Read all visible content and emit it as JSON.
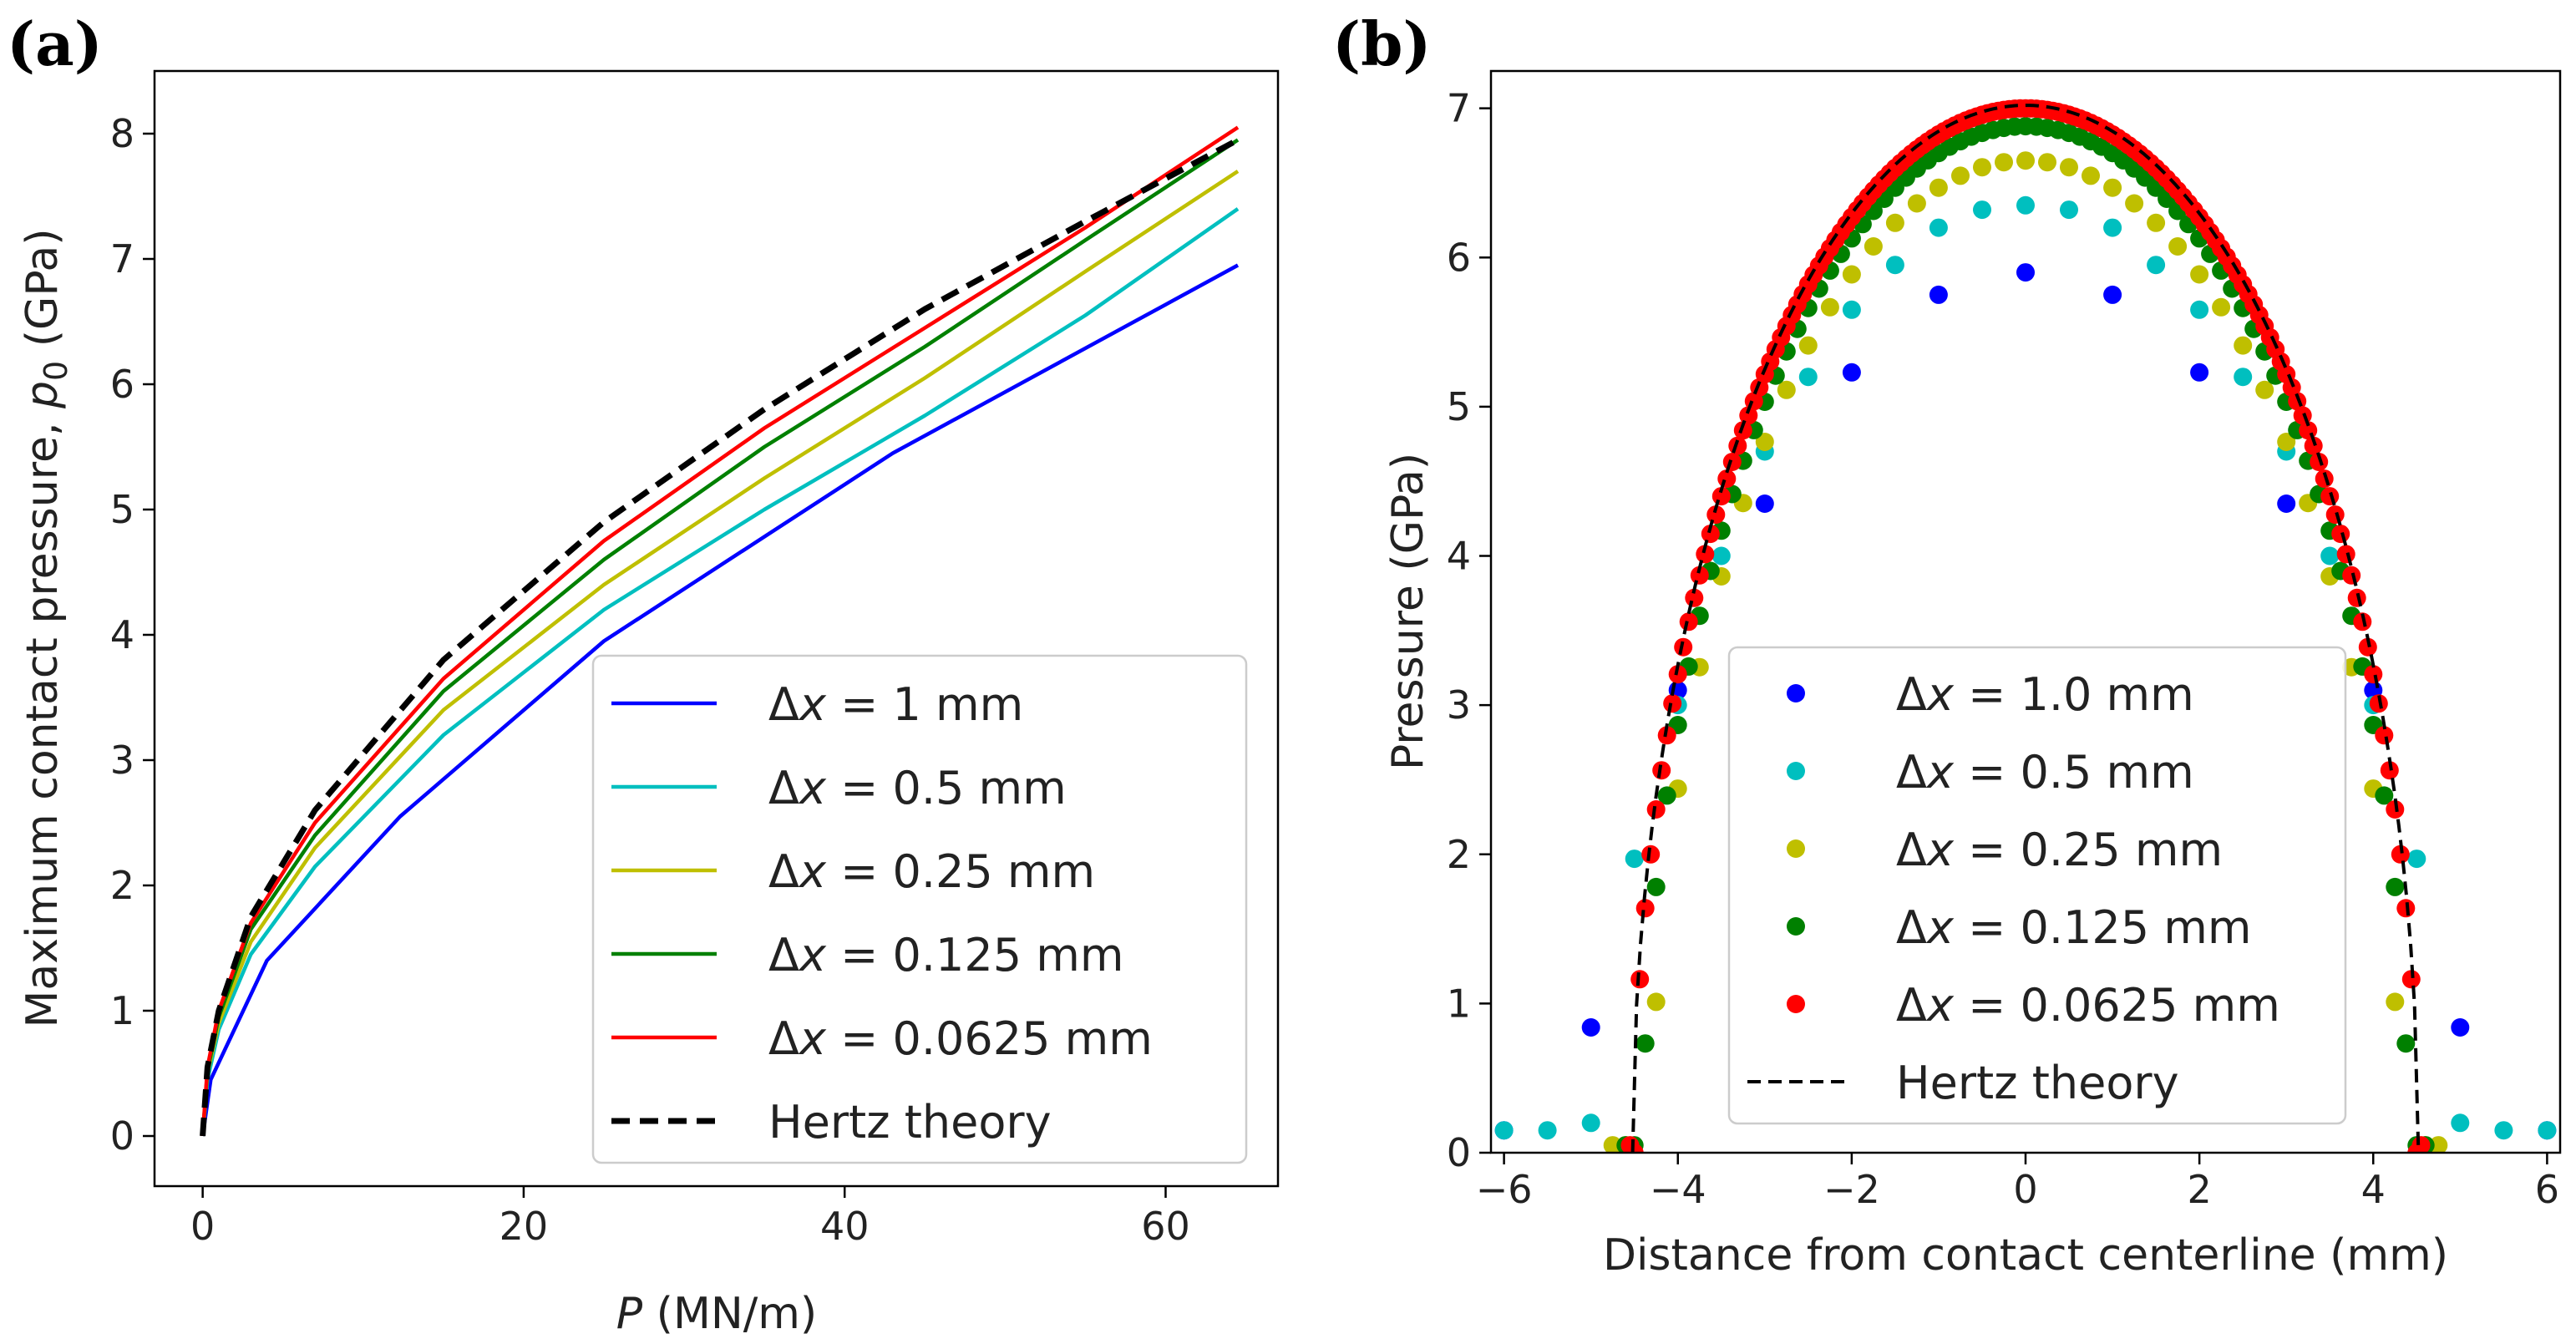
{
  "chart_data": [
    {
      "panel": "(a)",
      "type": "line",
      "xlabel_italic": "P",
      "xlabel_rest": " (MN/m)",
      "ylabel_main": "Maximum contact pressure, ",
      "ylabel_symbol": "p",
      "ylabel_sub": "0",
      "ylabel_unit": " (GPa)",
      "xlim": [
        -3,
        67
      ],
      "ylim": [
        -0.4,
        8.5
      ],
      "xticks": [
        0,
        20,
        40,
        60
      ],
      "yticks": [
        0,
        1,
        2,
        3,
        4,
        5,
        6,
        7,
        8
      ],
      "legend_position": "lower-right",
      "series": [
        {
          "name": "Δx = 1 mm",
          "label_prefix": "Δ",
          "label_var": "x",
          "label_rest": " = 1 mm",
          "color": "#0000ff",
          "dash": "solid",
          "x": [
            0,
            0.5,
            4,
            12.3,
            25,
            43,
            64.5
          ],
          "y": [
            0,
            0.45,
            1.4,
            2.55,
            3.95,
            5.45,
            6.95
          ]
        },
        {
          "name": "Δx = 0.5 mm",
          "label_prefix": "Δ",
          "label_var": "x",
          "label_rest": " = 0.5 mm",
          "color": "#00bfbf",
          "dash": "solid",
          "x": [
            0,
            0.3,
            1,
            3,
            7,
            15,
            25,
            35,
            45,
            55,
            64.5
          ],
          "y": [
            0,
            0.45,
            0.85,
            1.45,
            2.15,
            3.2,
            4.2,
            5.0,
            5.75,
            6.55,
            7.4
          ]
        },
        {
          "name": "Δx = 0.25 mm",
          "label_prefix": "Δ",
          "label_var": "x",
          "label_rest": " = 0.25 mm",
          "color": "#bfbf00",
          "dash": "solid",
          "x": [
            0,
            0.3,
            1,
            3,
            7,
            15,
            25,
            35,
            45,
            55,
            64.5
          ],
          "y": [
            0,
            0.5,
            0.9,
            1.55,
            2.3,
            3.4,
            4.4,
            5.25,
            6.05,
            6.9,
            7.7
          ]
        },
        {
          "name": "Δx = 0.125 mm",
          "label_prefix": "Δ",
          "label_var": "x",
          "label_rest": " = 0.125 mm",
          "color": "#008000",
          "dash": "solid",
          "x": [
            0,
            0.3,
            1,
            3,
            7,
            15,
            25,
            35,
            45,
            55,
            64.5
          ],
          "y": [
            0,
            0.52,
            0.95,
            1.65,
            2.4,
            3.55,
            4.6,
            5.5,
            6.3,
            7.15,
            7.95
          ]
        },
        {
          "name": "Δx = 0.0625 mm",
          "label_prefix": "Δ",
          "label_var": "x",
          "label_rest": " = 0.0625 mm",
          "color": "#ff0000",
          "dash": "solid",
          "x": [
            0,
            0.3,
            1,
            3,
            7,
            15,
            25,
            35,
            45,
            55,
            64.5
          ],
          "y": [
            0,
            0.55,
            1.0,
            1.7,
            2.5,
            3.65,
            4.75,
            5.65,
            6.45,
            7.25,
            8.05
          ]
        },
        {
          "name": "Hertz theory",
          "label_prefix": "",
          "label_var": "",
          "label_rest": "Hertz theory",
          "color": "#000000",
          "dash": "dashed",
          "x": [
            0,
            0.3,
            1,
            3,
            7,
            15,
            25,
            35,
            45,
            55,
            64.5
          ],
          "y": [
            0,
            0.55,
            1.0,
            1.75,
            2.6,
            3.8,
            4.9,
            5.8,
            6.6,
            7.3,
            7.95
          ]
        }
      ]
    },
    {
      "panel": "(b)",
      "type": "scatter",
      "xlabel": "Distance from contact centerline (mm)",
      "ylabel": "Pressure (GPa)",
      "xlim": [
        -6.15,
        6.15
      ],
      "ylim": [
        0,
        7.25
      ],
      "xticks": [
        -6,
        -4,
        -2,
        0,
        2,
        4,
        6
      ],
      "yticks": [
        0,
        1,
        2,
        3,
        4,
        5,
        6,
        7
      ],
      "legend_position": "lower-center",
      "hertz_half_width_mm": 4.52,
      "hertz_peak_gpa": 7.02,
      "series": [
        {
          "name": "Δx = 1.0 mm",
          "label_prefix": "Δ",
          "label_var": "x",
          "label_rest": " = 1.0 mm",
          "color": "#0000ff",
          "marker": "dot",
          "x": [
            -6,
            -5,
            -4,
            -3,
            -2,
            -1,
            0,
            1,
            2,
            3,
            4,
            5,
            6
          ],
          "y": [
            0.15,
            0.84,
            3.1,
            4.35,
            5.23,
            5.75,
            5.9,
            5.75,
            5.23,
            4.35,
            3.1,
            0.84,
            0.15
          ]
        },
        {
          "name": "Δx = 0.5 mm",
          "label_prefix": "Δ",
          "label_var": "x",
          "label_rest": " = 0.5 mm",
          "color": "#00bfbf",
          "marker": "dot",
          "x": [
            -6,
            -5.5,
            -5,
            -4.5,
            -4,
            -3.5,
            -3,
            -2.5,
            -2,
            -1.5,
            -1,
            -0.5,
            0,
            0.5,
            1,
            1.5,
            2,
            2.5,
            3,
            3.5,
            4,
            4.5,
            5,
            5.5,
            6
          ],
          "y": [
            0.15,
            0.15,
            0.2,
            1.97,
            3.0,
            4.0,
            4.7,
            5.2,
            5.65,
            5.95,
            6.2,
            6.32,
            6.35,
            6.32,
            6.2,
            5.95,
            5.65,
            5.2,
            4.7,
            4.0,
            3.0,
            1.97,
            0.2,
            0.15,
            0.15
          ]
        },
        {
          "name": "Δx = 0.25 mm",
          "label_prefix": "Δ",
          "label_var": "x",
          "label_rest": " = 0.25 mm",
          "color": "#bfbf00",
          "marker": "dot",
          "model": "hertz",
          "peak": 6.65,
          "half": 4.3,
          "spacing": 0.25,
          "tail": [
            -4.75,
            -4.6,
            4.6,
            4.75
          ]
        },
        {
          "name": "Δx = 0.125 mm",
          "label_prefix": "Δ",
          "label_var": "x",
          "label_rest": " = 0.125 mm",
          "color": "#008000",
          "marker": "dot",
          "model": "hertz",
          "peak": 6.88,
          "half": 4.4,
          "spacing": 0.125,
          "tail": [
            -4.6,
            -4.5,
            4.5,
            4.6
          ]
        },
        {
          "name": "Δx = 0.0625 mm",
          "label_prefix": "Δ",
          "label_var": "x",
          "label_rest": " = 0.0625 mm",
          "color": "#ff0000",
          "marker": "dot",
          "model": "hertz",
          "peak": 7.0,
          "half": 4.5,
          "spacing": 0.0625,
          "tail": [
            -4.55,
            4.55
          ]
        },
        {
          "name": "Hertz theory",
          "label_prefix": "",
          "label_var": "",
          "label_rest": "Hertz theory",
          "color": "#000000",
          "marker": "dashed-line"
        }
      ]
    }
  ]
}
